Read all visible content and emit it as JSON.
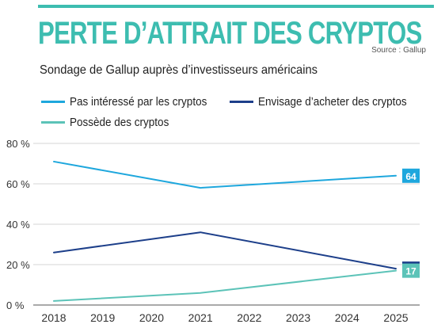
{
  "header": {
    "title": "PERTE D’ATTRAIT DES CRYPTOS",
    "subtitle": "Sondage de Gallup auprès d’investisseurs américains",
    "source": "Source : Gallup"
  },
  "colors": {
    "accent": "#3dbdb0",
    "grid": "#c8c8c8",
    "axis": "#555555"
  },
  "chart_data": {
    "type": "line",
    "title": "PERTE D’ATTRAIT DES CRYPTOS",
    "subtitle": "Sondage de Gallup auprès d’investisseurs américains",
    "xlabel": "",
    "ylabel": "",
    "x": [
      "2018",
      "2019",
      "2020",
      "2021",
      "2022",
      "2023",
      "2024",
      "2025"
    ],
    "ylim": [
      0,
      80
    ],
    "yticks": [
      0,
      20,
      40,
      60,
      80
    ],
    "ytick_labels": [
      "0 %",
      "20 %",
      "40 %",
      "60 %",
      "80 %"
    ],
    "grid": true,
    "legend_position": "top-left",
    "series": [
      {
        "name": "Pas intéressé par les cryptos",
        "color": "#1ea7dd",
        "points": [
          {
            "x": "2018",
            "y": 71
          },
          {
            "x": "2021",
            "y": 58
          },
          {
            "x": "2025",
            "y": 64
          }
        ],
        "end_label": "64"
      },
      {
        "name": "Envisage d’acheter des cryptos",
        "color": "#1d3f8a",
        "points": [
          {
            "x": "2018",
            "y": 26
          },
          {
            "x": "2021",
            "y": 36
          },
          {
            "x": "2025",
            "y": 18
          }
        ],
        "end_label": "18"
      },
      {
        "name": "Possède des cryptos",
        "color": "#5cc3b8",
        "points": [
          {
            "x": "2018",
            "y": 2
          },
          {
            "x": "2021",
            "y": 6
          },
          {
            "x": "2025",
            "y": 17
          }
        ],
        "end_label": "17"
      }
    ]
  }
}
